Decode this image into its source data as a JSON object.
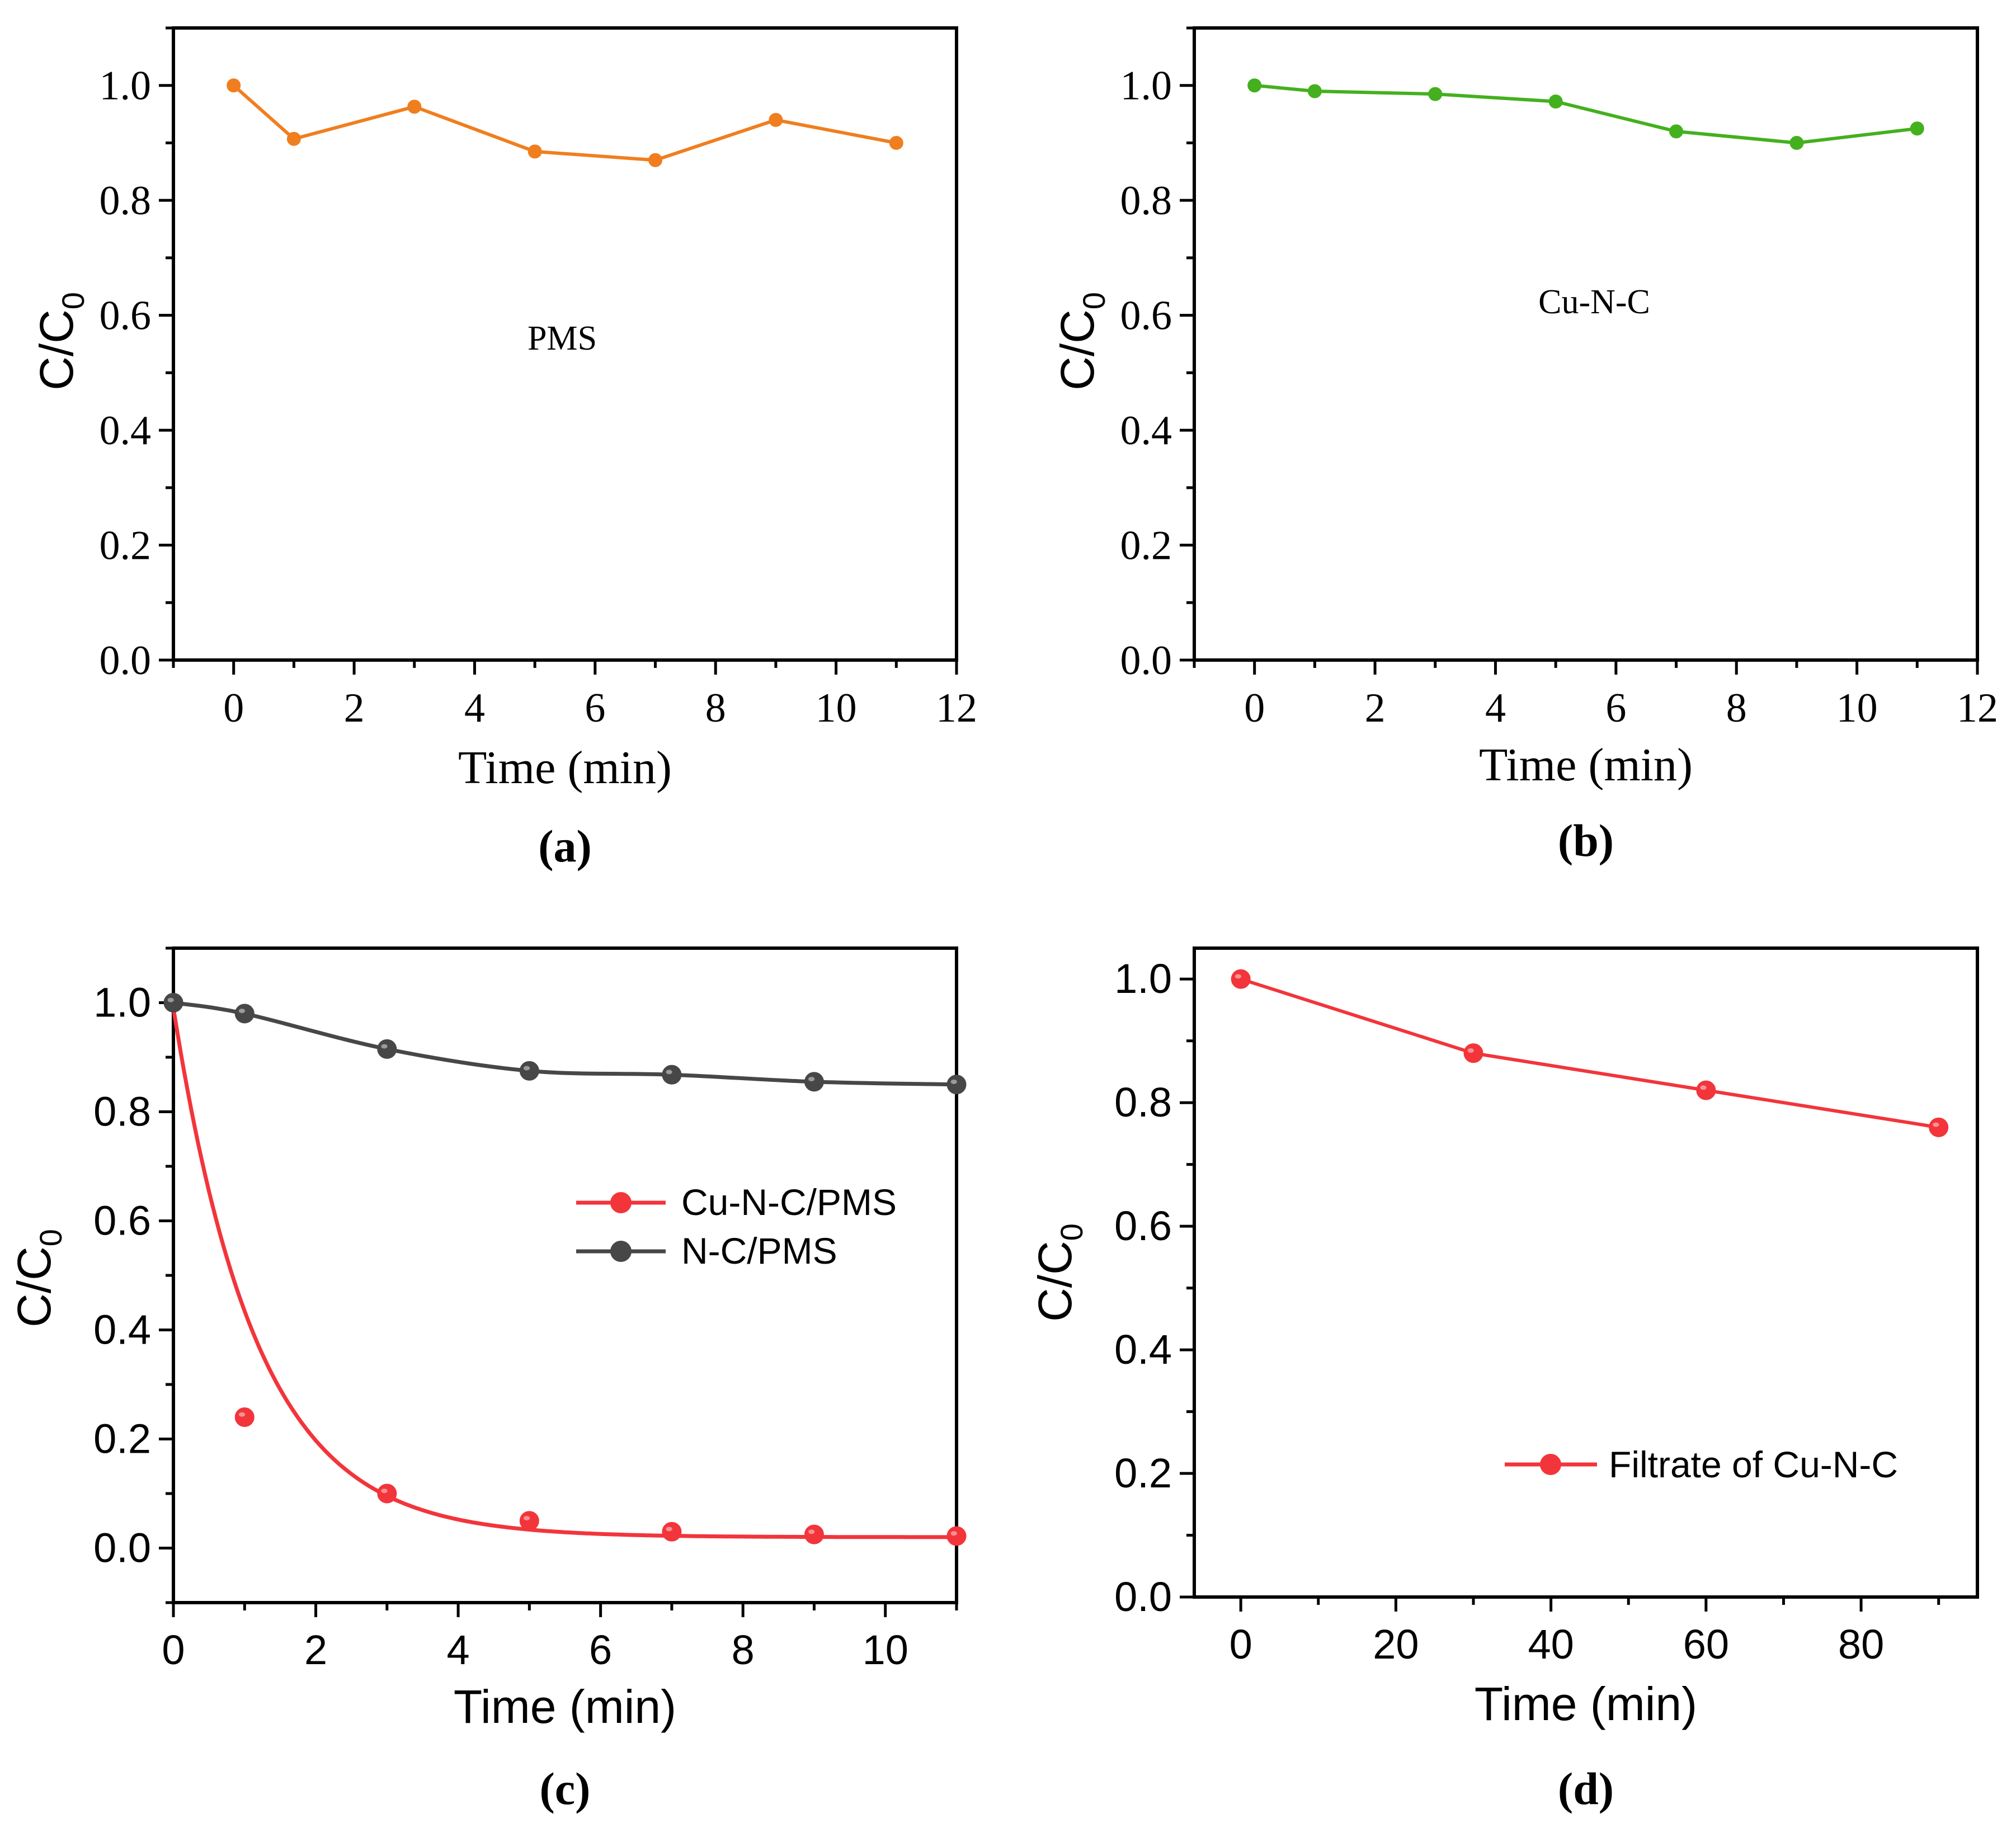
{
  "colors": {
    "pms": "#F07E1E",
    "cunc": "#44B01E",
    "cuncpms": "#F2353B",
    "ncpms": "#474747",
    "filtrate": "#F2353B"
  },
  "chart_data": [
    {
      "id": "a",
      "type": "line",
      "caption": "(a)",
      "annotation": "PMS",
      "xlabel": "Time (min)",
      "ylabel": "C/C",
      "ylabel_sub": "0",
      "xlim": [
        -1,
        12
      ],
      "ylim": [
        0,
        1.1
      ],
      "xticks": [
        "0",
        "2",
        "4",
        "6",
        "8",
        "10",
        "12"
      ],
      "yticks": [
        "0.0",
        "0.2",
        "0.4",
        "0.6",
        "0.8",
        "1.0"
      ],
      "series": [
        {
          "name": "PMS",
          "x": [
            0,
            1,
            3,
            5,
            7,
            9,
            11
          ],
          "values": [
            1.0,
            0.907,
            0.963,
            0.885,
            0.87,
            0.94,
            0.9
          ]
        }
      ]
    },
    {
      "id": "b",
      "type": "line",
      "caption": "(b)",
      "annotation": "Cu-N-C",
      "xlabel": "Time (min)",
      "ylabel": "C/C",
      "ylabel_sub": "0",
      "xlim": [
        -1,
        12
      ],
      "ylim": [
        0,
        1.1
      ],
      "xticks": [
        "0",
        "2",
        "4",
        "6",
        "8",
        "10",
        "12"
      ],
      "yticks": [
        "0.0",
        "0.2",
        "0.4",
        "0.6",
        "0.8",
        "1.0"
      ],
      "series": [
        {
          "name": "Cu-N-C",
          "x": [
            0,
            1,
            3,
            5,
            7,
            9,
            11
          ],
          "values": [
            1.0,
            0.99,
            0.985,
            0.972,
            0.92,
            0.9,
            0.925
          ]
        }
      ]
    },
    {
      "id": "c",
      "type": "scatter",
      "caption": "(c)",
      "xlabel": "Time (min)",
      "ylabel": "C/C",
      "ylabel_sub": "0",
      "xlim": [
        0,
        11
      ],
      "ylim": [
        -0.1,
        1.1
      ],
      "xticks": [
        "0",
        "2",
        "4",
        "6",
        "8",
        "10"
      ],
      "yticks": [
        "0.0",
        "0.2",
        "0.4",
        "0.6",
        "0.8",
        "1.0"
      ],
      "legend": [
        "Cu-N-C/PMS",
        "N-C/PMS"
      ],
      "legend_position": "center-right",
      "series": [
        {
          "name": "Cu-N-C/PMS",
          "x": [
            0,
            1,
            3,
            5,
            7,
            9,
            11
          ],
          "values": [
            1.0,
            0.24,
            0.1,
            0.05,
            0.03,
            0.025,
            0.022
          ],
          "fit": "exponential",
          "fit_params": {
            "a": 0.97,
            "k": 0.85,
            "c": 0.02
          }
        },
        {
          "name": "N-C/PMS",
          "x": [
            0,
            1,
            3,
            5,
            7,
            9,
            11
          ],
          "values": [
            1.0,
            0.98,
            0.915,
            0.875,
            0.868,
            0.855,
            0.85
          ]
        }
      ]
    },
    {
      "id": "d",
      "type": "line",
      "caption": "(d)",
      "xlabel": "Time (min)",
      "ylabel": "C/C",
      "ylabel_sub": "0",
      "xlim": [
        -6,
        95
      ],
      "ylim": [
        0,
        1.05
      ],
      "xticks": [
        "0",
        "20",
        "40",
        "60",
        "80"
      ],
      "yticks": [
        "0.0",
        "0.2",
        "0.4",
        "0.6",
        "0.8",
        "1.0"
      ],
      "legend": [
        "Filtrate of Cu-N-C"
      ],
      "legend_position": "bottom-right",
      "series": [
        {
          "name": "Filtrate of Cu-N-C",
          "x": [
            0,
            30,
            60,
            90
          ],
          "values": [
            1.0,
            0.88,
            0.82,
            0.76
          ]
        }
      ]
    }
  ]
}
